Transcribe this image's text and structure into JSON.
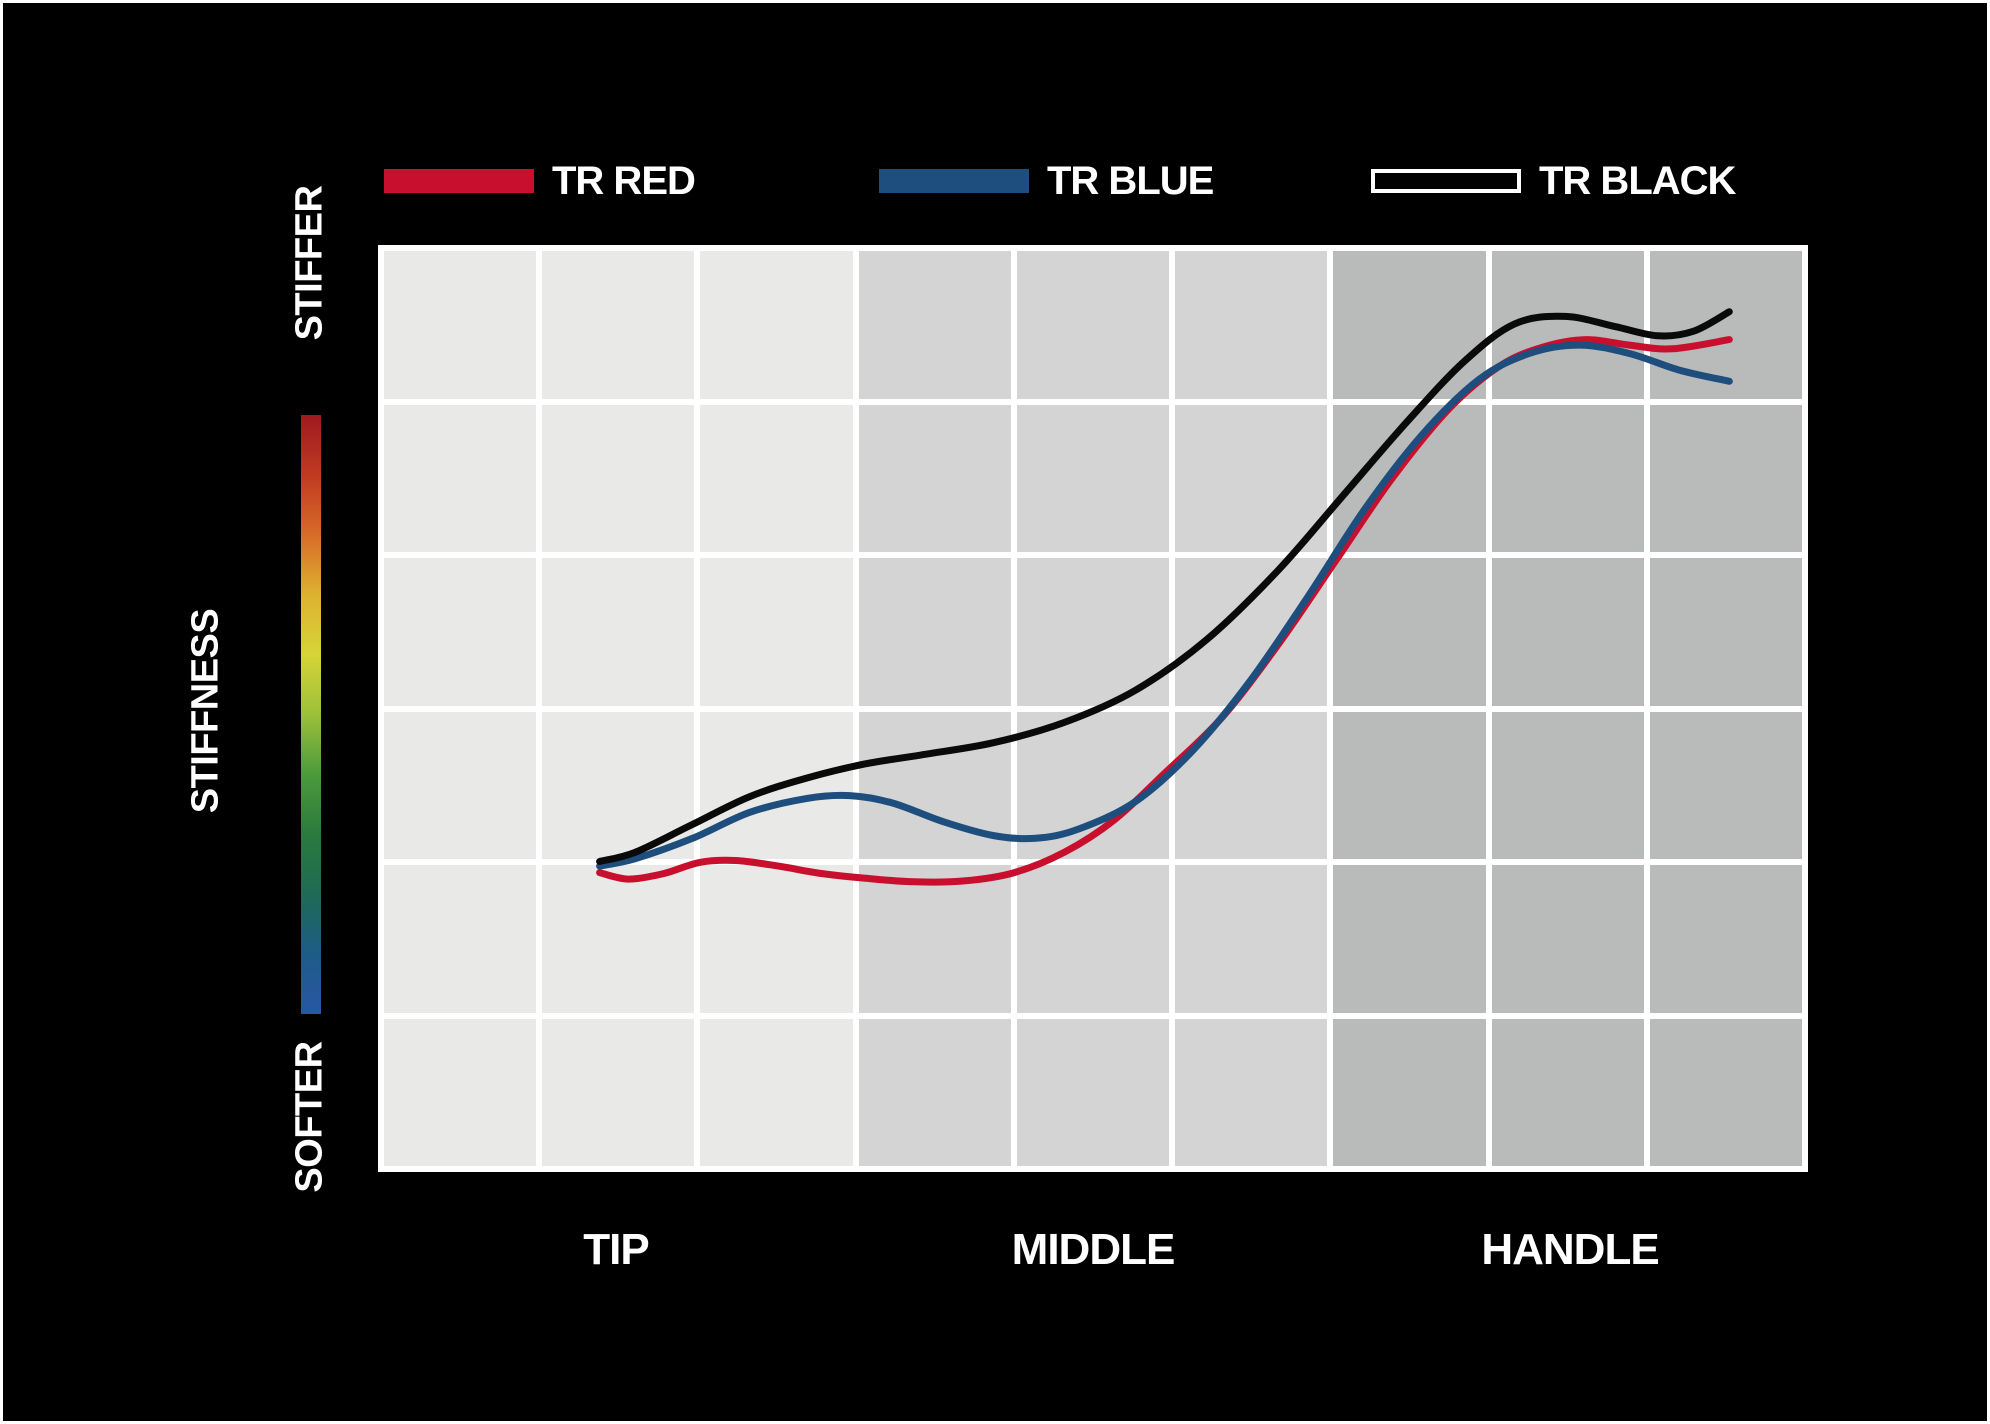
{
  "colors": {
    "background": "#000000",
    "frame": "#ffffff",
    "text": "#ffffff",
    "grid_line": "#ffffff"
  },
  "gradient_bar": {
    "direction": "top-to-bottom",
    "stops": [
      "#9e1a20",
      "#c03a21",
      "#d96b28",
      "#ddb230",
      "#d6d438",
      "#9cc03a",
      "#4c9a3c",
      "#2a7a3e",
      "#1f6a55",
      "#1d5c86",
      "#2a56a6"
    ]
  },
  "chart_data": {
    "type": "line",
    "x_axis": {
      "tick_labels": [
        "TIP",
        "MIDDLE",
        "HANDLE"
      ],
      "range_percent": [
        0,
        100
      ]
    },
    "y_axis": {
      "label": "STIFFNESS",
      "top_label": "STIFFER",
      "bottom_label": "SOFTER",
      "range_percent": [
        0,
        100
      ]
    },
    "grid": {
      "rows": 6,
      "columns": 9,
      "line_color": "#ffffff",
      "column_shades": [
        "#e9e9e8",
        "#e9e9e8",
        "#e9e9e8",
        "#d3d4d3",
        "#d3d4d3",
        "#d3d4d3",
        "#b9bbba",
        "#b9bbba",
        "#b9bbba"
      ]
    },
    "series": [
      {
        "name": "TR RED",
        "color": "#c8102e",
        "swatch_style": "filled",
        "stroke_width": 7,
        "points": [
          [
            15.5,
            32.3
          ],
          [
            17.5,
            31.6
          ],
          [
            20,
            32.2
          ],
          [
            22.5,
            33.4
          ],
          [
            25,
            33.6
          ],
          [
            28,
            33
          ],
          [
            31,
            32.2
          ],
          [
            34,
            31.7
          ],
          [
            37.5,
            31.3
          ],
          [
            41,
            31.4
          ],
          [
            44.5,
            32.3
          ],
          [
            48,
            34.5
          ],
          [
            51.5,
            38
          ],
          [
            55,
            43
          ],
          [
            59,
            49
          ],
          [
            63,
            57
          ],
          [
            67,
            66
          ],
          [
            71,
            75
          ],
          [
            75,
            82.5
          ],
          [
            78.5,
            87
          ],
          [
            81.5,
            89
          ],
          [
            84.5,
            89.8
          ],
          [
            87.5,
            89.2
          ],
          [
            90.5,
            88.8
          ],
          [
            94.5,
            89.8
          ]
        ]
      },
      {
        "name": "TR BLUE",
        "color": "#1d4e7e",
        "swatch_style": "filled",
        "stroke_width": 7,
        "points": [
          [
            15.5,
            33
          ],
          [
            18,
            33.8
          ],
          [
            22,
            36
          ],
          [
            26,
            38.8
          ],
          [
            30,
            40.3
          ],
          [
            33,
            40.6
          ],
          [
            36,
            39.8
          ],
          [
            39.5,
            37.8
          ],
          [
            43,
            36.3
          ],
          [
            46,
            36
          ],
          [
            49,
            37
          ],
          [
            53,
            40
          ],
          [
            57,
            45.5
          ],
          [
            61,
            53
          ],
          [
            65,
            62
          ],
          [
            69,
            71.5
          ],
          [
            73,
            79.5
          ],
          [
            77,
            85.5
          ],
          [
            80.5,
            88.3
          ],
          [
            84,
            89.2
          ],
          [
            87.5,
            88.3
          ],
          [
            91,
            86.5
          ],
          [
            94.5,
            85.3
          ]
        ]
      },
      {
        "name": "TR BLACK",
        "color": "#0a0a0a",
        "swatch_style": "outlined",
        "stroke_width": 7,
        "points": [
          [
            15.5,
            33.5
          ],
          [
            18,
            34.5
          ],
          [
            22,
            37.5
          ],
          [
            26,
            40.5
          ],
          [
            30,
            42.5
          ],
          [
            34,
            44
          ],
          [
            38,
            45
          ],
          [
            43,
            46.3
          ],
          [
            48,
            48.5
          ],
          [
            53,
            52
          ],
          [
            58,
            57.5
          ],
          [
            63,
            65
          ],
          [
            67.5,
            73
          ],
          [
            72,
            81
          ],
          [
            76,
            87.5
          ],
          [
            79.5,
            91.5
          ],
          [
            83,
            92.3
          ],
          [
            86.5,
            91.2
          ],
          [
            89.5,
            90.2
          ],
          [
            92,
            90.7
          ],
          [
            94.5,
            92.8
          ]
        ]
      }
    ]
  }
}
